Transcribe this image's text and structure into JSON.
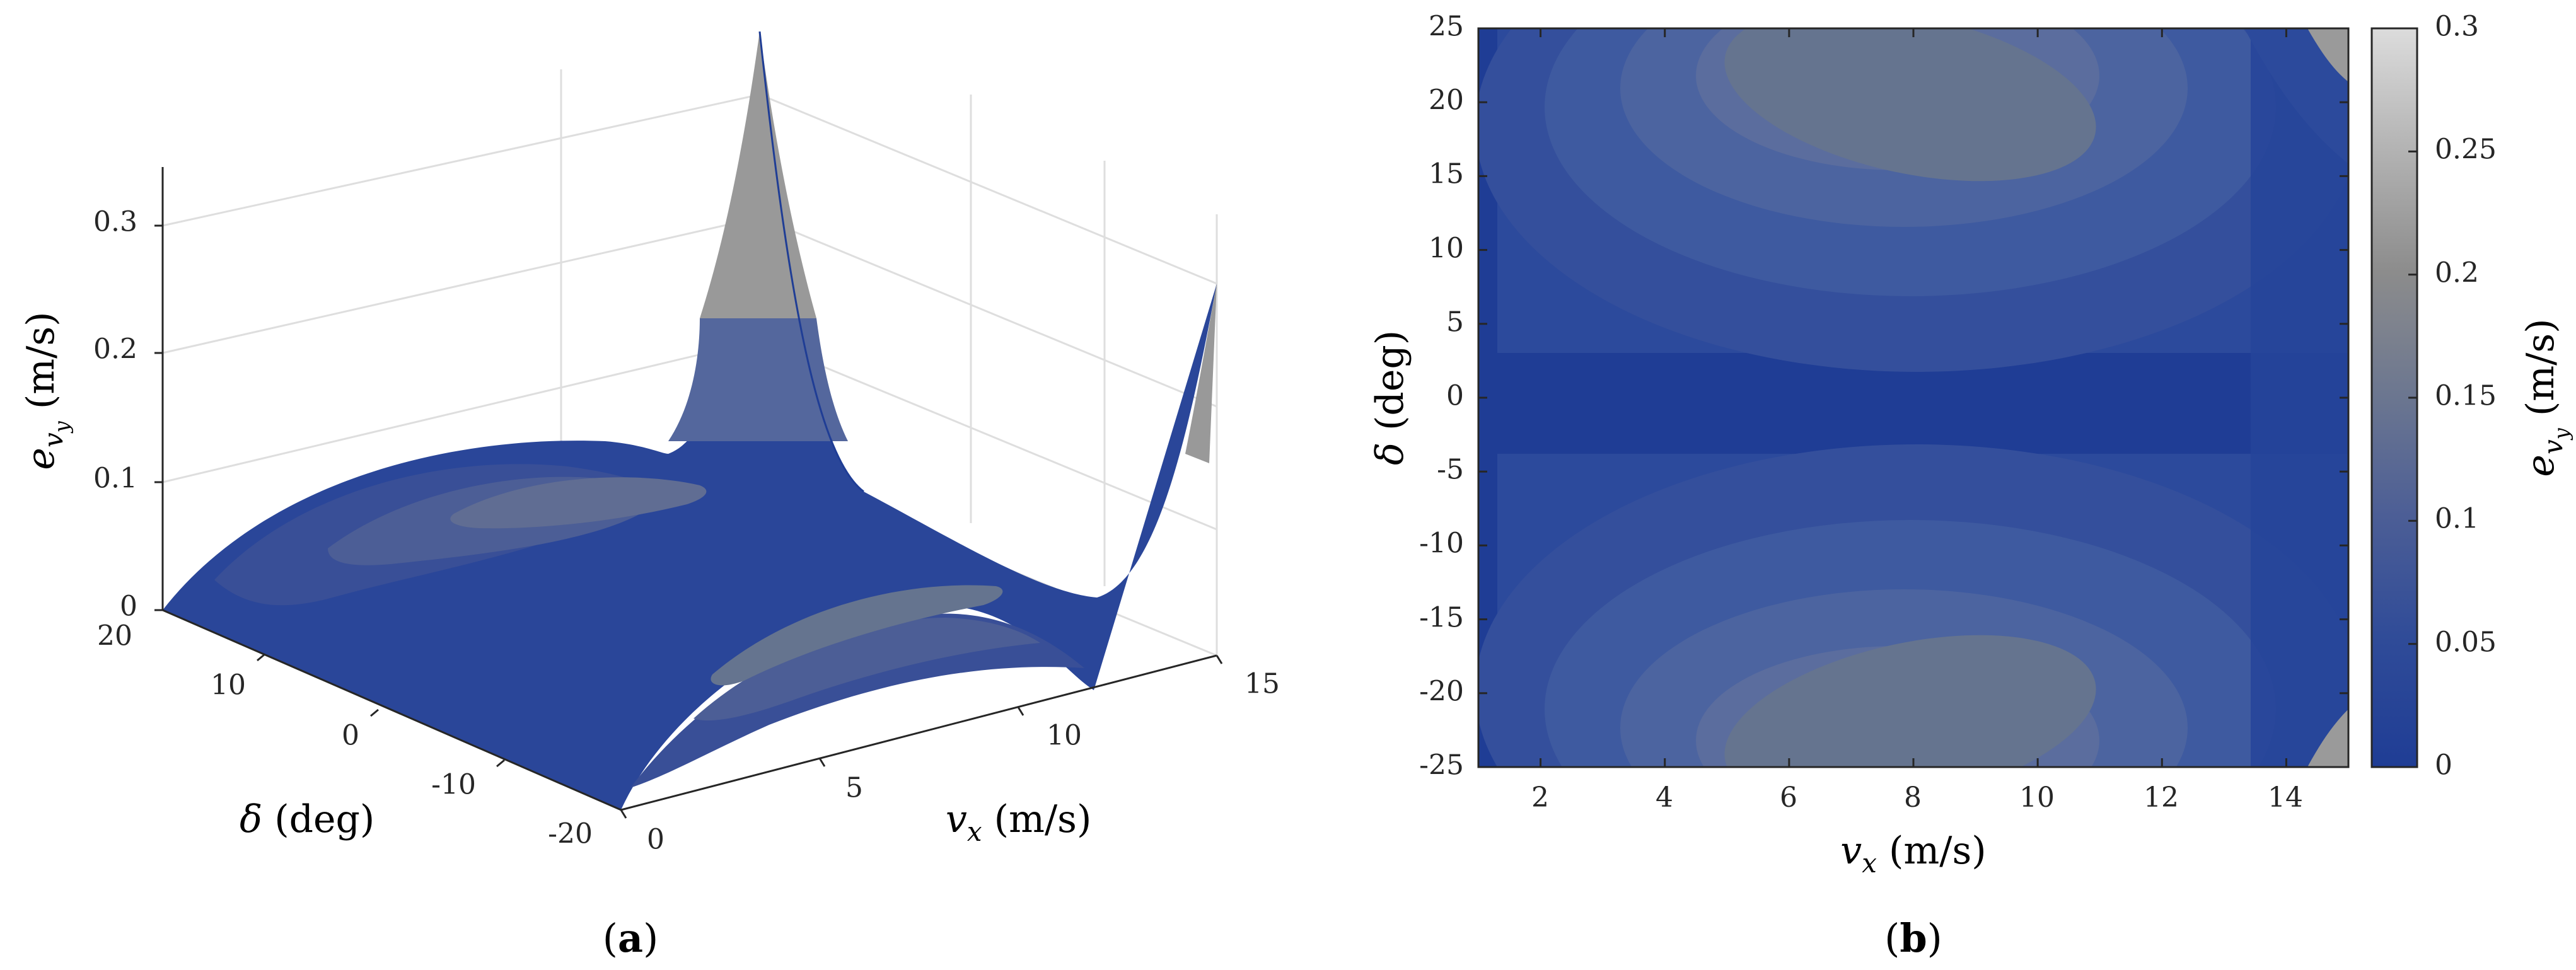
{
  "chart_data": [
    {
      "type": "surface3d",
      "panel_label": "a",
      "xlabel": "v_x (m/s)",
      "xlabel_var": "v",
      "xlabel_sub": "x",
      "xlabel_unit": " (m/s)",
      "ylabel": "δ (deg)",
      "ylabel_var": "δ",
      "ylabel_unit": " (deg)",
      "zlabel": "e_vy (m/s)",
      "zlabel_var": "e",
      "zlabel_sub": "v",
      "zlabel_subsub": "y",
      "zlabel_unit": " (m/s)",
      "xlim": [
        0,
        15
      ],
      "ylim": [
        -20,
        20
      ],
      "zlim": [
        0,
        0.35
      ],
      "x_ticks": [
        "0",
        "5",
        "10",
        "15"
      ],
      "y_ticks": [
        "20",
        "10",
        "0",
        "-10",
        "-20"
      ],
      "z_ticks": [
        "0",
        "0.1",
        "0.2",
        "0.3"
      ],
      "colormap": [
        "#1f3d95",
        "#2c4a9c",
        "#3e5aa0",
        "#51669c",
        "#65748f",
        "#7f8796",
        "#999999",
        "#b7b7b7"
      ],
      "peak_values": {
        "x_at_peak": 15,
        "delta_at_peak": 20,
        "max_e": 0.35
      }
    },
    {
      "type": "contour",
      "panel_label": "b",
      "xlabel_var": "v",
      "xlabel_sub": "x",
      "xlabel_unit": " (m/s)",
      "ylabel_var": "δ",
      "ylabel_unit": " (deg)",
      "colorbar_var": "e",
      "colorbar_sub": "v",
      "colorbar_subsub": "y",
      "colorbar_unit": " (m/s)",
      "xlim": [
        1,
        15
      ],
      "ylim": [
        -25,
        25
      ],
      "x_ticks": [
        "2",
        "4",
        "6",
        "8",
        "10",
        "12",
        "14"
      ],
      "y_ticks": [
        "25",
        "20",
        "15",
        "10",
        "5",
        "0",
        "-5",
        "-10",
        "-15",
        "-20",
        "-25"
      ],
      "colorbar_ticks": [
        "0.3",
        "0.25",
        "0.2",
        "0.15",
        "0.1",
        "0.05",
        "0"
      ],
      "colorbar_range": [
        0,
        0.3
      ],
      "colors": {
        "low": "#1f3d95",
        "mid": "#596a98",
        "high": "#d9d9d9"
      }
    }
  ]
}
